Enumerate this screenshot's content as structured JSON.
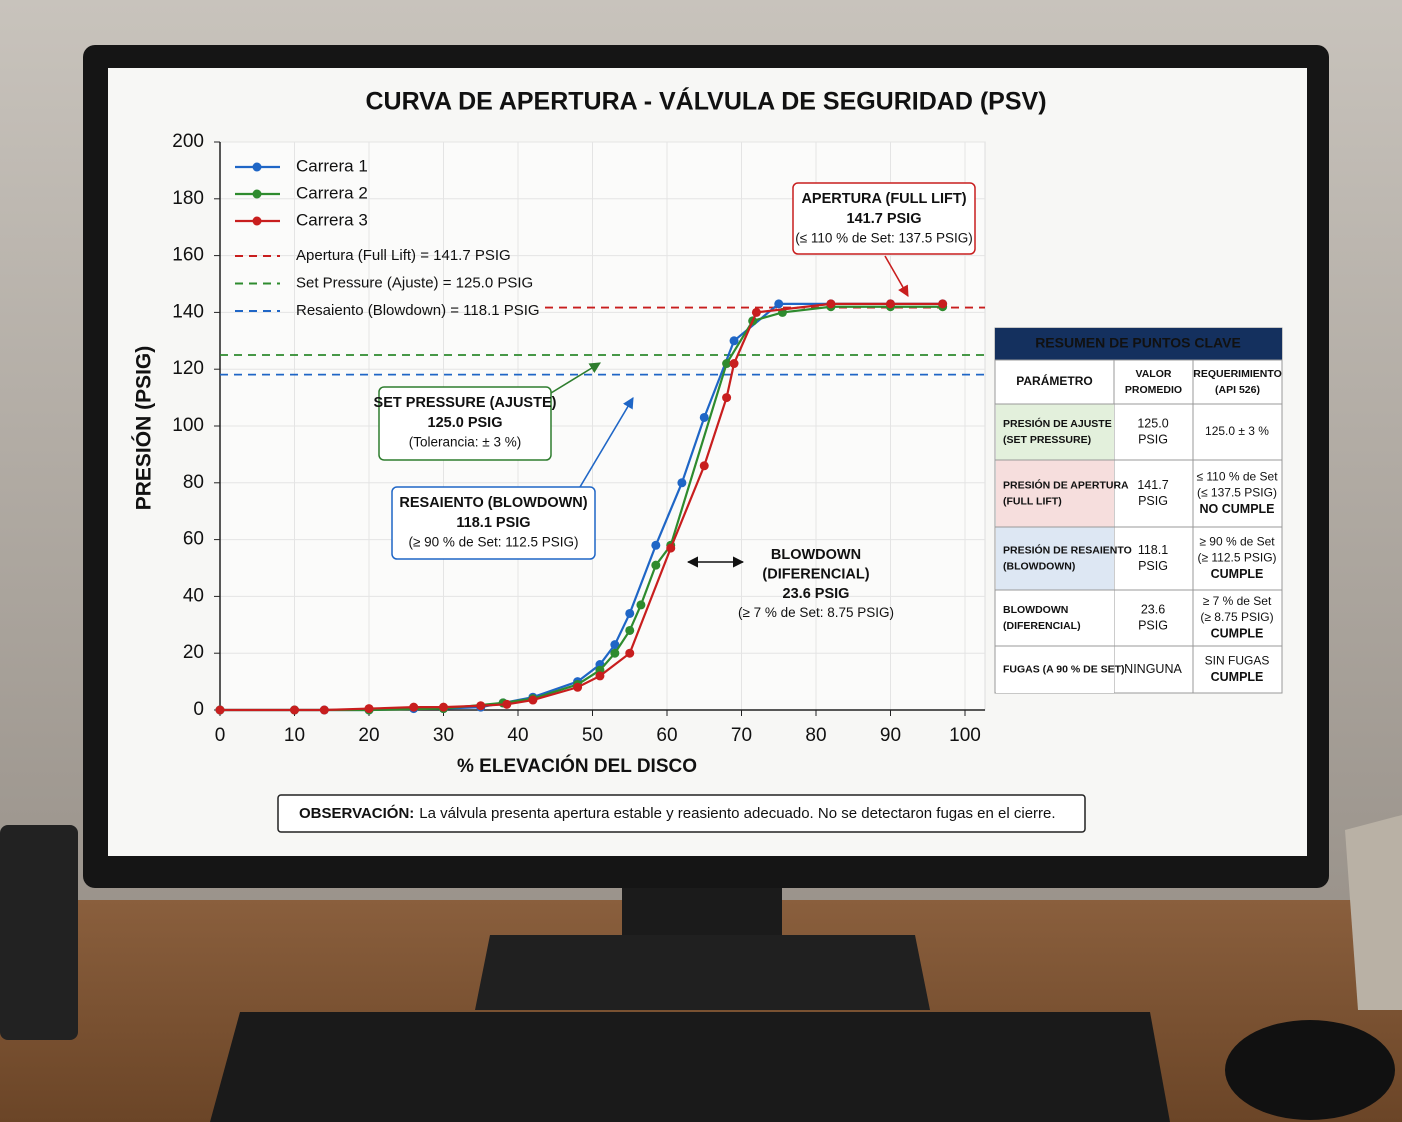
{
  "chart_data": {
    "type": "line",
    "title": "CURVA DE APERTURA - VÁLVULA DE SEGURIDAD (PSV)",
    "x_label": "% ELEVACIÓN DEL DISCO",
    "y_label": "PRESIÓN (PSIG)",
    "xlim": [
      0,
      100
    ],
    "ylim": [
      0,
      200
    ],
    "xticks": [
      0,
      10,
      20,
      30,
      40,
      50,
      60,
      70,
      80,
      90,
      100
    ],
    "yticks": [
      0,
      20,
      40,
      60,
      80,
      100,
      120,
      140,
      160,
      180,
      200
    ],
    "grid": true,
    "series": [
      {
        "name": "Carrera 1",
        "color": "#1f66c6",
        "x": [
          0,
          10,
          14,
          20,
          26,
          30,
          35,
          38,
          42,
          48,
          51,
          53,
          55,
          58.5,
          62,
          65,
          69,
          75,
          82,
          90,
          97
        ],
        "values": [
          0,
          0,
          0,
          0,
          0.5,
          0.5,
          1,
          2.5,
          4.5,
          10,
          16,
          23,
          34,
          58,
          80,
          103,
          130,
          143,
          143,
          143,
          143
        ]
      },
      {
        "name": "Carrera 2",
        "color": "#2e8b2e",
        "x": [
          0,
          10,
          20,
          30,
          38,
          42,
          48,
          51,
          53,
          55,
          56.5,
          58.5,
          60.5,
          68,
          71.5,
          75.5,
          82,
          90,
          97
        ],
        "values": [
          0,
          0,
          0,
          0.5,
          2.5,
          4,
          9,
          14,
          20,
          28,
          37,
          51,
          58,
          122,
          137,
          140,
          142,
          142,
          142
        ]
      },
      {
        "name": "Carrera 3",
        "color": "#c81e1e",
        "x": [
          0,
          10,
          14,
          20,
          26,
          30,
          35,
          38.5,
          42,
          48,
          51,
          55,
          60.5,
          65,
          68,
          69,
          72,
          82,
          90,
          97
        ],
        "values": [
          0,
          0,
          0,
          0.5,
          1,
          1,
          1.5,
          2,
          3.5,
          8,
          12,
          20,
          57,
          86,
          110,
          122,
          140,
          143,
          143,
          143
        ]
      }
    ],
    "reference_lines": [
      {
        "name": "Apertura (Full Lift) = 141.7 PSIG",
        "value": 141.7,
        "color": "#c81e1e"
      },
      {
        "name": "Set Pressure (Ajuste) = 125.0 PSIG",
        "value": 125.0,
        "color": "#2e8b2e"
      },
      {
        "name": "Resaiento (Blowdown) = 118.1 PSIG",
        "value": 118.1,
        "color": "#1f66c6"
      }
    ],
    "annotations": [
      {
        "color": "#c81e1e",
        "lines": [
          "APERTURA (FULL LIFT)",
          "141.7 PSIG",
          "(≤ 110 % de Set: 137.5 PSIG)"
        ]
      },
      {
        "color": "#2e7d2e",
        "lines": [
          "SET PRESSURE (AJUSTE)",
          "125.0 PSIG",
          "(Tolerancia: ± 3 %)"
        ]
      },
      {
        "color": "#1f66c6",
        "lines": [
          "RESAIENTO (BLOWDOWN)",
          "118.1 PSIG",
          "(≥ 90 % de Set: 112.5 PSIG)"
        ]
      },
      {
        "color": "#111111",
        "lines": [
          "BLOWDOWN",
          "(DIFERENCIAL)",
          "23.6 PSIG",
          "(≥ 7 % de Set: 8.75  PSIG)"
        ]
      }
    ]
  },
  "table": {
    "title": "RESUMEN DE PUNTOS CLAVE",
    "headers": [
      [
        "PARÁMETRO"
      ],
      [
        "VALOR",
        "PROMEDIO"
      ],
      [
        "REQUERIMIENTO",
        "(API 526)"
      ]
    ],
    "rows": [
      {
        "parameter": [
          "PRESIÓN DE AJUSTE",
          "(SET PRESSURE)"
        ],
        "value": [
          "125.0",
          "PSIG"
        ],
        "requirement": [
          "125.0 ± 3 %"
        ],
        "fill": "#e3f0dc"
      },
      {
        "parameter": [
          "PRESIÓN DE APERTURA",
          "(FULL LIFT)"
        ],
        "value": [
          "141.7",
          "PSIG"
        ],
        "requirement": [
          "≤ 110 % de Set",
          "(≤ 137.5 PSIG)"
        ],
        "status": "NO CUMPLE",
        "status_color": "#c00000",
        "fill": "#f6dedd"
      },
      {
        "parameter": [
          "PRESIÓN DE RESAIENTO",
          "(BLOWDOWN)"
        ],
        "value": [
          "118.1",
          "PSIG"
        ],
        "requirement": [
          "≥ 90 % de Set",
          "(≥ 112.5 PSIG)"
        ],
        "status": "CUMPLE",
        "status_color": "#1e7a1e",
        "fill": "#dde7f3"
      },
      {
        "parameter": [
          "BLOWDOWN",
          "(DIFERENCIAL)"
        ],
        "value": [
          "23.6",
          "PSIG"
        ],
        "requirement": [
          "≥ 7 % de Set",
          "(≥ 8.75 PSIG)"
        ],
        "status": "CUMPLE",
        "status_color": "#1e7a1e",
        "fill": "#ffffff"
      },
      {
        "parameter": [
          "FUGAS (A 90 % DE SET)"
        ],
        "value": [
          "NINGUNA"
        ],
        "requirement": [
          "SIN FUGAS"
        ],
        "status": "CUMPLE",
        "status_color": "#1e7a1e",
        "fill": "#ffffff"
      }
    ]
  },
  "observation": {
    "label": "OBSERVACIÓN:",
    "text": "La válvula presenta apertura estable y reasiento adecuado. No se detectaron fugas en el cierre."
  }
}
